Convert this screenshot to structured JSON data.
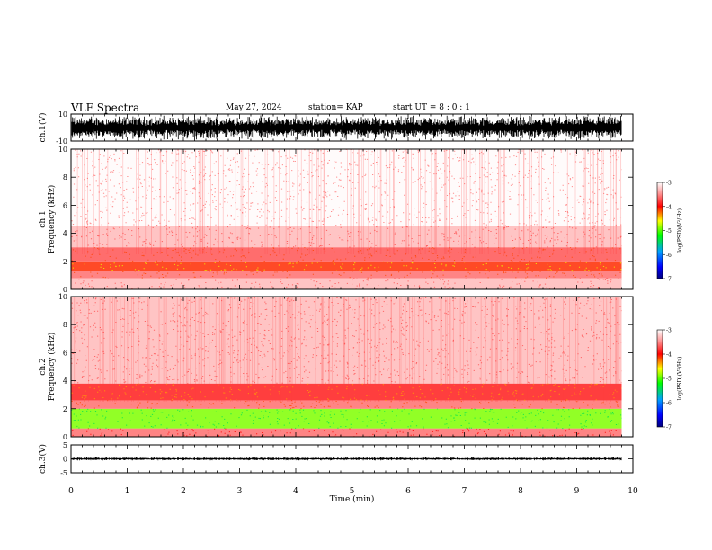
{
  "header": {
    "title": "VLF Spectra",
    "date": "May 27, 2024",
    "station": "station= KAP",
    "start_ut": "start  UT =   8 : 0  : 1"
  },
  "colors": {
    "colormap": [
      "#000080",
      "#0000ff",
      "#00a0ff",
      "#00ff00",
      "#ffff00",
      "#ff8000",
      "#ff0000",
      "#ffffff"
    ]
  },
  "chart_data": [
    {
      "type": "line",
      "name": "ch1-waveform",
      "ylabel": "ch.1(V)",
      "ylim": [
        -10,
        10
      ],
      "yticks": [
        "10",
        "-10"
      ],
      "xlim": [
        0,
        10
      ],
      "x_data_end": 9.8
    },
    {
      "type": "heatmap",
      "name": "ch1-spectrogram",
      "ylabel": "ch.1\nFrequency (kHz)",
      "ylabel_lines": [
        "ch.1",
        "Frequency  (kHz)"
      ],
      "ylim": [
        0,
        10
      ],
      "yticks": [
        "0",
        "2",
        "4",
        "6",
        "8",
        "10"
      ],
      "xlim": [
        0,
        10
      ],
      "colorbar": {
        "label": "log(PSD)(V²/Hz)",
        "range": [
          -7,
          -3
        ],
        "ticks": [
          "-3",
          "-4",
          "-5",
          "-6",
          "-7"
        ]
      },
      "bands": [
        {
          "f0": 0.0,
          "f1": 0.8,
          "level": -3.3
        },
        {
          "f0": 0.8,
          "f1": 1.3,
          "level": -3.6
        },
        {
          "f0": 1.3,
          "f1": 2.0,
          "level": -4.1
        },
        {
          "f0": 2.0,
          "f1": 3.0,
          "level": -3.7
        },
        {
          "f0": 3.0,
          "f1": 4.5,
          "level": -3.3
        },
        {
          "f0": 4.5,
          "f1": 10.0,
          "level": -3.05
        }
      ]
    },
    {
      "type": "heatmap",
      "name": "ch2-spectrogram",
      "ylabel": "ch.2\nFrequency (kHz)",
      "ylabel_lines": [
        "ch.2",
        "Frequency  (kHz)"
      ],
      "ylim": [
        0,
        10
      ],
      "yticks": [
        "0",
        "2",
        "4",
        "6",
        "8",
        "10"
      ],
      "xlim": [
        0,
        10
      ],
      "colorbar": {
        "label": "log(PSD)(V²/Hz)",
        "range": [
          -7,
          -3
        ],
        "ticks": [
          "-3",
          "-4",
          "-5",
          "-6",
          "-7"
        ]
      },
      "bands": [
        {
          "f0": 0.0,
          "f1": 0.6,
          "level": -3.6
        },
        {
          "f0": 0.6,
          "f1": 2.0,
          "level": -4.9
        },
        {
          "f0": 2.0,
          "f1": 2.6,
          "level": -3.6
        },
        {
          "f0": 2.6,
          "f1": 3.8,
          "level": -3.9
        },
        {
          "f0": 3.8,
          "f1": 10.0,
          "level": -3.3
        }
      ]
    },
    {
      "type": "line",
      "name": "ch3-waveform",
      "ylabel": "ch.3(V)",
      "ylim": [
        -5,
        5
      ],
      "yticks": [
        "5",
        "0",
        "-5"
      ],
      "xlim": [
        0,
        10
      ],
      "x_data_end": 9.8
    }
  ],
  "xaxis": {
    "label": "Time  (min)",
    "ticks": [
      "0",
      "1",
      "2",
      "3",
      "4",
      "5",
      "6",
      "7",
      "8",
      "9",
      "10"
    ]
  }
}
